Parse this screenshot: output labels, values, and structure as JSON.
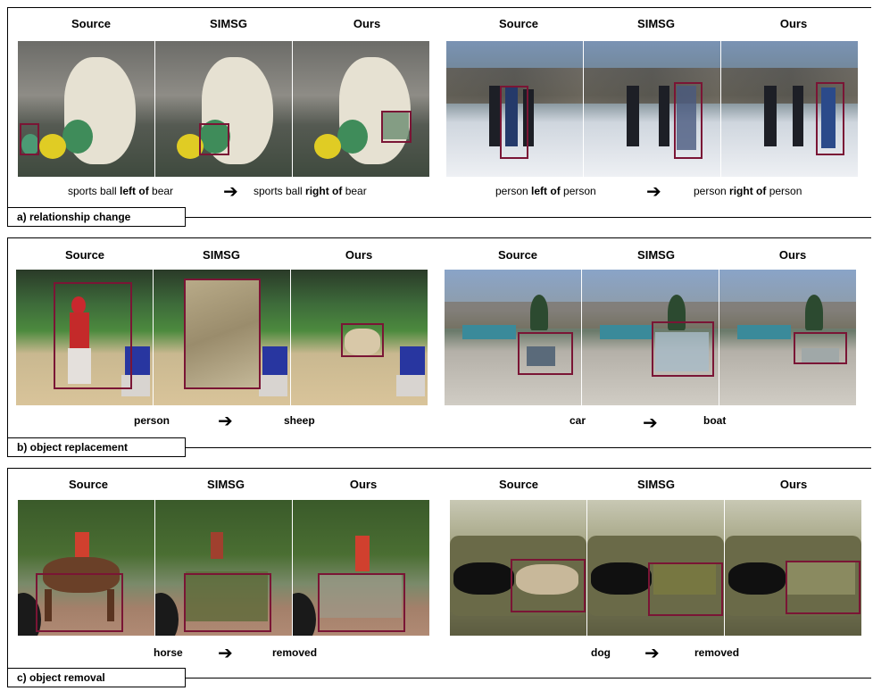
{
  "columns": [
    "Source",
    "SIMSG",
    "Ours"
  ],
  "arrow": "➔",
  "panels": {
    "a": {
      "tag": "a) relationship change",
      "left_caption": {
        "pre": "sports ball ",
        "bold": "left of",
        "post": " bear"
      },
      "left_caption2": {
        "pre": "sports ball ",
        "bold": "right of",
        "post": " bear"
      },
      "right_caption": {
        "pre": "person ",
        "bold": "left of",
        "post": " person"
      },
      "right_caption2": {
        "pre": "person ",
        "bold": "right of",
        "post": " person"
      }
    },
    "b": {
      "tag": "b) object replacement",
      "left_from": "person",
      "left_to": "sheep",
      "right_from": "car",
      "right_to": "boat"
    },
    "c": {
      "tag": "c) object removal",
      "left_from": "horse",
      "left_to": "removed",
      "right_from": "dog",
      "right_to": "removed"
    }
  },
  "colors": {
    "highlight_box": "#7a1535"
  }
}
